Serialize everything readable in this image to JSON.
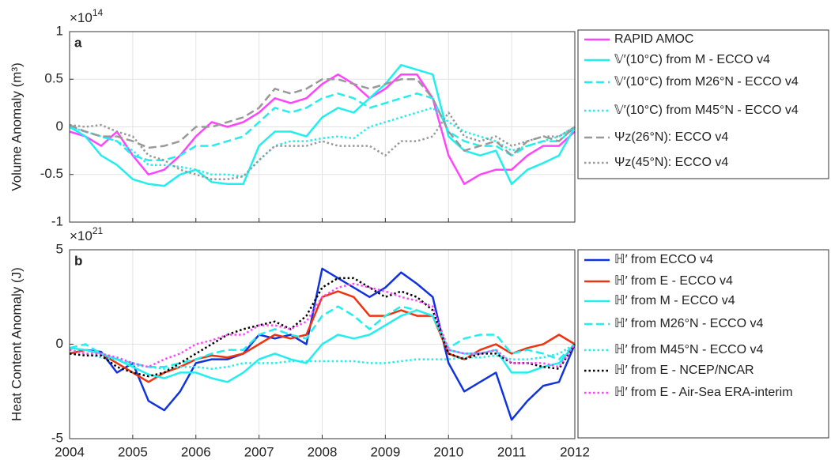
{
  "chart_data": [
    {
      "type": "line",
      "panel_label": "a",
      "y_label": "Volume Anomaly (m³)",
      "multiplier": {
        "base": "×10",
        "exponent": "14"
      },
      "x": [
        2004,
        2004.25,
        2004.5,
        2004.75,
        2005,
        2005.25,
        2005.5,
        2005.75,
        2006,
        2006.25,
        2006.5,
        2006.75,
        2007,
        2007.25,
        2007.5,
        2007.75,
        2008,
        2008.25,
        2008.5,
        2008.75,
        2009,
        2009.25,
        2009.5,
        2009.75,
        2010,
        2010.25,
        2010.5,
        2010.75,
        2011,
        2011.25,
        2011.5,
        2011.75,
        2012
      ],
      "xlim": [
        2004,
        2012
      ],
      "xticks": [
        2004,
        2005,
        2006,
        2007,
        2008,
        2009,
        2010,
        2011,
        2012
      ],
      "show_xtick_labels": false,
      "ylim": [
        -1,
        1
      ],
      "yticks": [
        -1,
        -0.5,
        0,
        0.5,
        1
      ],
      "grid": true,
      "legend": "outside-right",
      "series": [
        {
          "name": "RAPID AMOC",
          "color": "#ff44ff",
          "dash": "solid",
          "values": [
            -0.05,
            -0.1,
            -0.2,
            -0.05,
            -0.3,
            -0.5,
            -0.45,
            -0.3,
            -0.1,
            0.05,
            0.0,
            0.05,
            0.15,
            0.3,
            0.25,
            0.3,
            0.45,
            0.55,
            0.45,
            0.3,
            0.4,
            0.55,
            0.55,
            0.3,
            -0.3,
            -0.6,
            -0.5,
            -0.45,
            -0.45,
            -0.3,
            -0.2,
            -0.2,
            -0.05
          ]
        },
        {
          "name": "𝕍′(10°C) from M - ECCO v4",
          "color": "#22eeee",
          "dash": "solid",
          "values": [
            0,
            -0.1,
            -0.3,
            -0.4,
            -0.55,
            -0.6,
            -0.62,
            -0.5,
            -0.45,
            -0.58,
            -0.6,
            -0.6,
            -0.2,
            -0.05,
            -0.05,
            -0.1,
            0.1,
            0.2,
            0.15,
            0.3,
            0.45,
            0.65,
            0.6,
            0.55,
            -0.1,
            -0.25,
            -0.3,
            -0.25,
            -0.6,
            -0.45,
            -0.38,
            -0.3,
            0
          ]
        },
        {
          "name": "𝕍′(10°C) from M26°N - ECCO v4",
          "color": "#22eeee",
          "dash": "dashed",
          "values": [
            0,
            -0.05,
            -0.1,
            -0.15,
            -0.3,
            -0.35,
            -0.35,
            -0.3,
            -0.2,
            -0.2,
            -0.15,
            -0.1,
            0.05,
            0.2,
            0.15,
            0.2,
            0.3,
            0.35,
            0.3,
            0.2,
            0.25,
            0.3,
            0.35,
            0.3,
            -0.05,
            -0.15,
            -0.2,
            -0.2,
            -0.3,
            -0.2,
            -0.15,
            -0.15,
            0
          ]
        },
        {
          "name": "𝕍′(10°C) from M45°N - ECCO v4",
          "color": "#22eeee",
          "dash": "dotted",
          "values": [
            0,
            -0.05,
            -0.1,
            -0.15,
            -0.25,
            -0.4,
            -0.4,
            -0.42,
            -0.45,
            -0.5,
            -0.5,
            -0.52,
            -0.35,
            -0.2,
            -0.15,
            -0.15,
            -0.12,
            -0.1,
            -0.12,
            0.0,
            0.05,
            0.1,
            0.15,
            0.2,
            0.05,
            -0.05,
            -0.1,
            -0.15,
            -0.25,
            -0.2,
            -0.15,
            -0.1,
            0
          ]
        },
        {
          "name": "Ψz(26°N): ECCO v4",
          "color": "#999999",
          "dash": "dashed",
          "values": [
            0.02,
            -0.05,
            -0.1,
            -0.1,
            -0.15,
            -0.22,
            -0.2,
            -0.15,
            0.0,
            0.0,
            0.05,
            0.1,
            0.2,
            0.4,
            0.35,
            0.4,
            0.5,
            0.5,
            0.45,
            0.4,
            0.45,
            0.5,
            0.5,
            0.3,
            -0.05,
            -0.25,
            -0.2,
            -0.15,
            -0.3,
            -0.15,
            -0.1,
            -0.15,
            0
          ]
        },
        {
          "name": "Ψz(45°N): ECCO v4",
          "color": "#999999",
          "dash": "dotted",
          "values": [
            0.02,
            0.0,
            0.02,
            -0.05,
            -0.1,
            -0.3,
            -0.35,
            -0.45,
            -0.5,
            -0.55,
            -0.55,
            -0.52,
            -0.35,
            -0.2,
            -0.2,
            -0.2,
            -0.15,
            -0.2,
            -0.2,
            -0.2,
            -0.3,
            -0.15,
            -0.15,
            -0.1,
            0.15,
            -0.1,
            -0.15,
            -0.1,
            -0.2,
            -0.15,
            -0.1,
            -0.1,
            0
          ]
        }
      ]
    },
    {
      "type": "line",
      "panel_label": "b",
      "y_label": "Heat Content Anomaly (J)",
      "multiplier": {
        "base": "×10",
        "exponent": "21"
      },
      "x": [
        2004,
        2004.25,
        2004.5,
        2004.75,
        2005,
        2005.25,
        2005.5,
        2005.75,
        2006,
        2006.25,
        2006.5,
        2006.75,
        2007,
        2007.25,
        2007.5,
        2007.75,
        2008,
        2008.25,
        2008.5,
        2008.75,
        2009,
        2009.25,
        2009.5,
        2009.75,
        2010,
        2010.25,
        2010.5,
        2010.75,
        2011,
        2011.25,
        2011.5,
        2011.75,
        2012
      ],
      "xlim": [
        2004,
        2012
      ],
      "xticks": [
        2004,
        2005,
        2006,
        2007,
        2008,
        2009,
        2010,
        2011,
        2012
      ],
      "show_xtick_labels": true,
      "ylim": [
        -5,
        5
      ],
      "yticks": [
        -5,
        0,
        5
      ],
      "grid": true,
      "legend": "outside-right",
      "series": [
        {
          "name": "ℍ′ from ECCO v4",
          "color": "#1133dd",
          "dash": "solid",
          "values": [
            -0.5,
            -0.3,
            -0.4,
            -1.5,
            -1.0,
            -3.0,
            -3.5,
            -2.5,
            -1.0,
            -0.8,
            -0.8,
            -0.5,
            0.5,
            0.3,
            0.5,
            0.0,
            4.0,
            3.5,
            3.0,
            2.5,
            3.0,
            3.8,
            3.2,
            2.5,
            -1.0,
            -2.5,
            -2.0,
            -1.5,
            -4.0,
            -3.0,
            -2.2,
            -2.0,
            0
          ]
        },
        {
          "name": "ℍ′ from E - ECCO v4",
          "color": "#ee3311",
          "dash": "solid",
          "values": [
            -0.5,
            -0.3,
            -0.5,
            -1.0,
            -1.5,
            -2.0,
            -1.5,
            -1.2,
            -0.8,
            -0.6,
            -0.7,
            -0.5,
            0.0,
            0.5,
            0.3,
            0.5,
            2.5,
            2.8,
            2.5,
            1.5,
            1.5,
            1.8,
            1.5,
            1.5,
            -0.5,
            -0.8,
            -0.3,
            0.0,
            -0.5,
            -0.2,
            0.0,
            0.5,
            0
          ]
        },
        {
          "name": "ℍ′ from M - ECCO v4",
          "color": "#22eeee",
          "dash": "solid",
          "values": [
            -0.2,
            -0.3,
            -0.5,
            -0.8,
            -1.2,
            -1.6,
            -1.8,
            -1.5,
            -1.5,
            -1.8,
            -2.0,
            -1.5,
            -0.8,
            -0.5,
            -0.8,
            -1.0,
            0.0,
            0.5,
            0.3,
            0.5,
            1.0,
            1.5,
            1.8,
            1.5,
            -0.3,
            -0.5,
            -0.5,
            -0.3,
            -1.5,
            -1.5,
            -1.2,
            -1.0,
            0
          ]
        },
        {
          "name": "ℍ′ from M26°N - ECCO v4",
          "color": "#22eeee",
          "dash": "dashed",
          "values": [
            -0.2,
            0.0,
            -0.5,
            -0.8,
            -1.0,
            -1.2,
            -1.2,
            -1.0,
            -0.8,
            -0.5,
            -0.3,
            -0.3,
            0.5,
            0.8,
            0.5,
            0.3,
            1.5,
            2.0,
            1.5,
            0.8,
            1.5,
            2.0,
            1.8,
            1.5,
            -0.2,
            0.3,
            0.5,
            0.5,
            -0.5,
            -0.3,
            -0.5,
            -0.8,
            0
          ]
        },
        {
          "name": "ℍ′ from M45°N - ECCO v4",
          "color": "#22eeee",
          "dash": "dotted",
          "values": [
            -0.3,
            -0.5,
            -0.7,
            -0.8,
            -1.1,
            -1.2,
            -1.3,
            -1.2,
            -1.2,
            -1.3,
            -1.2,
            -1.0,
            -1.0,
            -1.0,
            -0.9,
            -0.9,
            -0.9,
            -0.9,
            -0.9,
            -1.0,
            -1.0,
            -0.9,
            -0.8,
            -0.8,
            -0.8,
            -0.7,
            -0.7,
            -0.6,
            -0.8,
            -0.8,
            -0.7,
            -0.5,
            0
          ]
        },
        {
          "name": "ℍ′ from E - NCEP/NCAR",
          "color": "#000000",
          "dash": "dotted",
          "values": [
            -0.5,
            -0.6,
            -0.6,
            -1.2,
            -1.5,
            -1.7,
            -1.5,
            -1.0,
            -0.5,
            0.0,
            0.5,
            0.8,
            1.0,
            1.2,
            0.8,
            1.5,
            3.0,
            3.5,
            3.5,
            3.0,
            2.5,
            2.8,
            2.5,
            1.8,
            -0.5,
            -0.8,
            -0.5,
            -0.5,
            -1.0,
            -1.0,
            -1.2,
            -1.3,
            0
          ]
        },
        {
          "name": "ℍ′ from E - Air-Sea ERA-interim",
          "color": "#ff44ff",
          "dash": "dotted",
          "values": [
            -0.3,
            -0.5,
            -0.5,
            -0.7,
            -1.0,
            -1.2,
            -0.8,
            -0.5,
            0.0,
            0.2,
            0.5,
            0.5,
            1.0,
            1.0,
            0.8,
            1.2,
            2.5,
            3.0,
            3.2,
            3.0,
            2.8,
            2.5,
            2.3,
            2.0,
            -0.3,
            -0.5,
            -0.5,
            -0.3,
            -1.0,
            -1.0,
            -1.0,
            -1.2,
            0
          ]
        }
      ]
    }
  ]
}
